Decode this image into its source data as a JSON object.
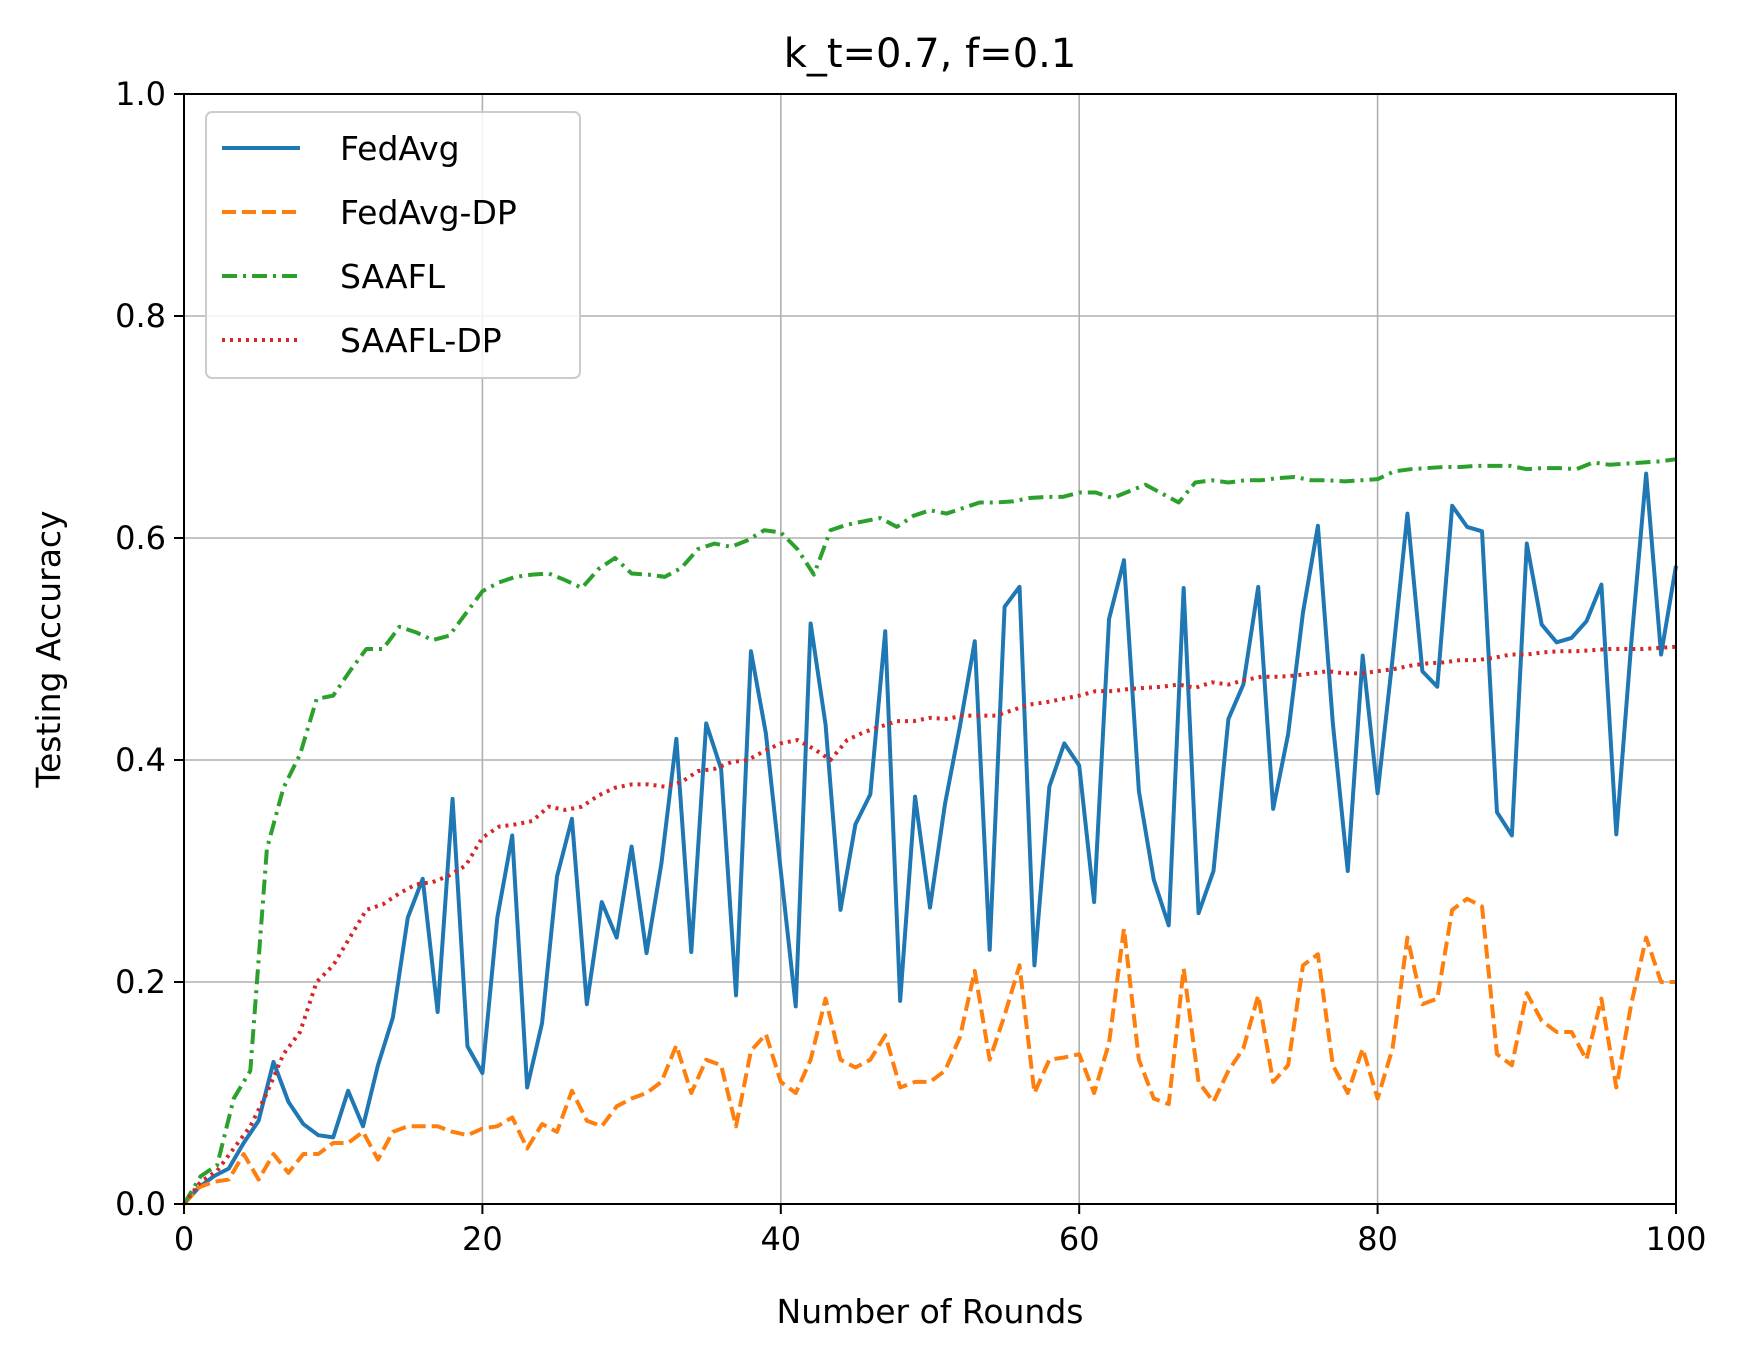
{
  "chart_data": {
    "type": "line",
    "title": "k_t=0.7, f=0.1",
    "xlabel": "Number of Rounds",
    "ylabel": "Testing Accuracy",
    "xlim": [
      0,
      100
    ],
    "ylim": [
      0,
      1.0
    ],
    "x_ticks": [
      0,
      20,
      40,
      60,
      80,
      100
    ],
    "y_ticks": [
      0.0,
      0.2,
      0.4,
      0.6,
      0.8,
      1.0
    ],
    "x_tick_labels": [
      "0",
      "20",
      "40",
      "60",
      "80",
      "100"
    ],
    "y_tick_labels": [
      "0.0",
      "0.2",
      "0.4",
      "0.6",
      "0.8",
      "1.0"
    ],
    "grid": true,
    "legend_position": "top-left",
    "series": [
      {
        "name": "FedAvg",
        "color": "#1f77b4",
        "dash": "solid",
        "values": [
          0.0,
          0.015,
          0.025,
          0.032,
          0.055,
          0.075,
          0.128,
          0.092,
          0.072,
          0.062,
          0.06,
          0.102,
          0.07,
          0.125,
          0.168,
          0.258,
          0.293,
          0.173,
          0.365,
          0.142,
          0.118,
          0.258,
          0.332,
          0.105,
          0.163,
          0.295,
          0.347,
          0.18,
          0.272,
          0.24,
          0.322,
          0.226,
          0.307,
          0.419,
          0.227,
          0.433,
          0.392,
          0.188,
          0.498,
          0.424,
          0.3,
          0.178,
          0.523,
          0.432,
          0.265,
          0.342,
          0.369,
          0.516,
          0.183,
          0.367,
          0.267,
          0.36,
          0.43,
          0.507,
          0.229,
          0.538,
          0.556,
          0.215,
          0.376,
          0.415,
          0.395,
          0.272,
          0.527,
          0.58,
          0.372,
          0.292,
          0.251,
          0.555,
          0.262,
          0.3,
          0.437,
          0.468,
          0.556,
          0.356,
          0.423,
          0.533,
          0.611,
          0.433,
          0.3,
          0.494,
          0.37,
          0.491,
          0.622,
          0.48,
          0.466,
          0.629,
          0.61,
          0.606,
          0.353,
          0.332,
          0.595,
          0.522,
          0.506,
          0.51,
          0.525,
          0.558,
          0.333,
          0.505,
          0.658,
          0.495,
          0.575
        ]
      },
      {
        "name": "FedAvg-DP",
        "color": "#ff7f0e",
        "dash": "dashed",
        "values": [
          0.0,
          0.015,
          0.02,
          0.022,
          0.045,
          0.022,
          0.045,
          0.028,
          0.045,
          0.045,
          0.055,
          0.055,
          0.065,
          0.04,
          0.065,
          0.07,
          0.07,
          0.07,
          0.065,
          0.062,
          0.068,
          0.07,
          0.078,
          0.05,
          0.072,
          0.065,
          0.102,
          0.075,
          0.07,
          0.088,
          0.095,
          0.1,
          0.11,
          0.143,
          0.1,
          0.13,
          0.125,
          0.07,
          0.138,
          0.153,
          0.11,
          0.1,
          0.13,
          0.185,
          0.13,
          0.123,
          0.13,
          0.152,
          0.105,
          0.11,
          0.11,
          0.12,
          0.15,
          0.21,
          0.13,
          0.17,
          0.215,
          0.1,
          0.13,
          0.132,
          0.135,
          0.1,
          0.145,
          0.248,
          0.13,
          0.095,
          0.09,
          0.212,
          0.11,
          0.092,
          0.12,
          0.14,
          0.188,
          0.11,
          0.125,
          0.215,
          0.225,
          0.125,
          0.1,
          0.14,
          0.095,
          0.14,
          0.24,
          0.18,
          0.185,
          0.265,
          0.275,
          0.268,
          0.135,
          0.125,
          0.19,
          0.165,
          0.155,
          0.155,
          0.13,
          0.185,
          0.105,
          0.18,
          0.24,
          0.2,
          0.2
        ]
      },
      {
        "name": "SAAFL",
        "color": "#2ca02c",
        "dash": "dashdot",
        "values": [
          0.0,
          0.025,
          0.035,
          0.095,
          0.12,
          0.32,
          0.375,
          0.405,
          0.455,
          0.458,
          0.48,
          0.5,
          0.5,
          0.52,
          0.515,
          0.508,
          0.512,
          0.532,
          0.552,
          0.56,
          0.565,
          0.567,
          0.568,
          0.562,
          0.555,
          0.572,
          0.582,
          0.568,
          0.567,
          0.565,
          0.573,
          0.59,
          0.595,
          0.592,
          0.598,
          0.607,
          0.605,
          0.59,
          0.567,
          0.607,
          0.612,
          0.615,
          0.618,
          0.61,
          0.62,
          0.625,
          0.622,
          0.627,
          0.632,
          0.632,
          0.633,
          0.636,
          0.637,
          0.637,
          0.641,
          0.641,
          0.636,
          0.642,
          0.648,
          0.64,
          0.632,
          0.65,
          0.652,
          0.65,
          0.652,
          0.652,
          0.654,
          0.655,
          0.652,
          0.652,
          0.651,
          0.652,
          0.653,
          0.66,
          0.662,
          0.663,
          0.664,
          0.664,
          0.665,
          0.665,
          0.665,
          0.662,
          0.663,
          0.663,
          0.662,
          0.668,
          0.666,
          0.667,
          0.668,
          0.669,
          0.671
        ]
      },
      {
        "name": "SAAFL-DP",
        "color": "#d62728",
        "dash": "dotted",
        "values": [
          0.0,
          0.02,
          0.03,
          0.05,
          0.07,
          0.1,
          0.135,
          0.155,
          0.2,
          0.215,
          0.24,
          0.265,
          0.27,
          0.28,
          0.288,
          0.29,
          0.296,
          0.305,
          0.33,
          0.34,
          0.342,
          0.345,
          0.358,
          0.355,
          0.358,
          0.368,
          0.375,
          0.378,
          0.378,
          0.376,
          0.38,
          0.39,
          0.392,
          0.398,
          0.4,
          0.408,
          0.415,
          0.418,
          0.41,
          0.4,
          0.418,
          0.425,
          0.43,
          0.435,
          0.435,
          0.438,
          0.437,
          0.44,
          0.44,
          0.44,
          0.445,
          0.45,
          0.452,
          0.455,
          0.458,
          0.462,
          0.462,
          0.464,
          0.465,
          0.466,
          0.468,
          0.465,
          0.47,
          0.468,
          0.472,
          0.475,
          0.475,
          0.476,
          0.478,
          0.48,
          0.478,
          0.478,
          0.48,
          0.482,
          0.485,
          0.487,
          0.488,
          0.49,
          0.49,
          0.492,
          0.495,
          0.495,
          0.497,
          0.498,
          0.498,
          0.499,
          0.5,
          0.5,
          0.5,
          0.501,
          0.502
        ]
      }
    ]
  }
}
